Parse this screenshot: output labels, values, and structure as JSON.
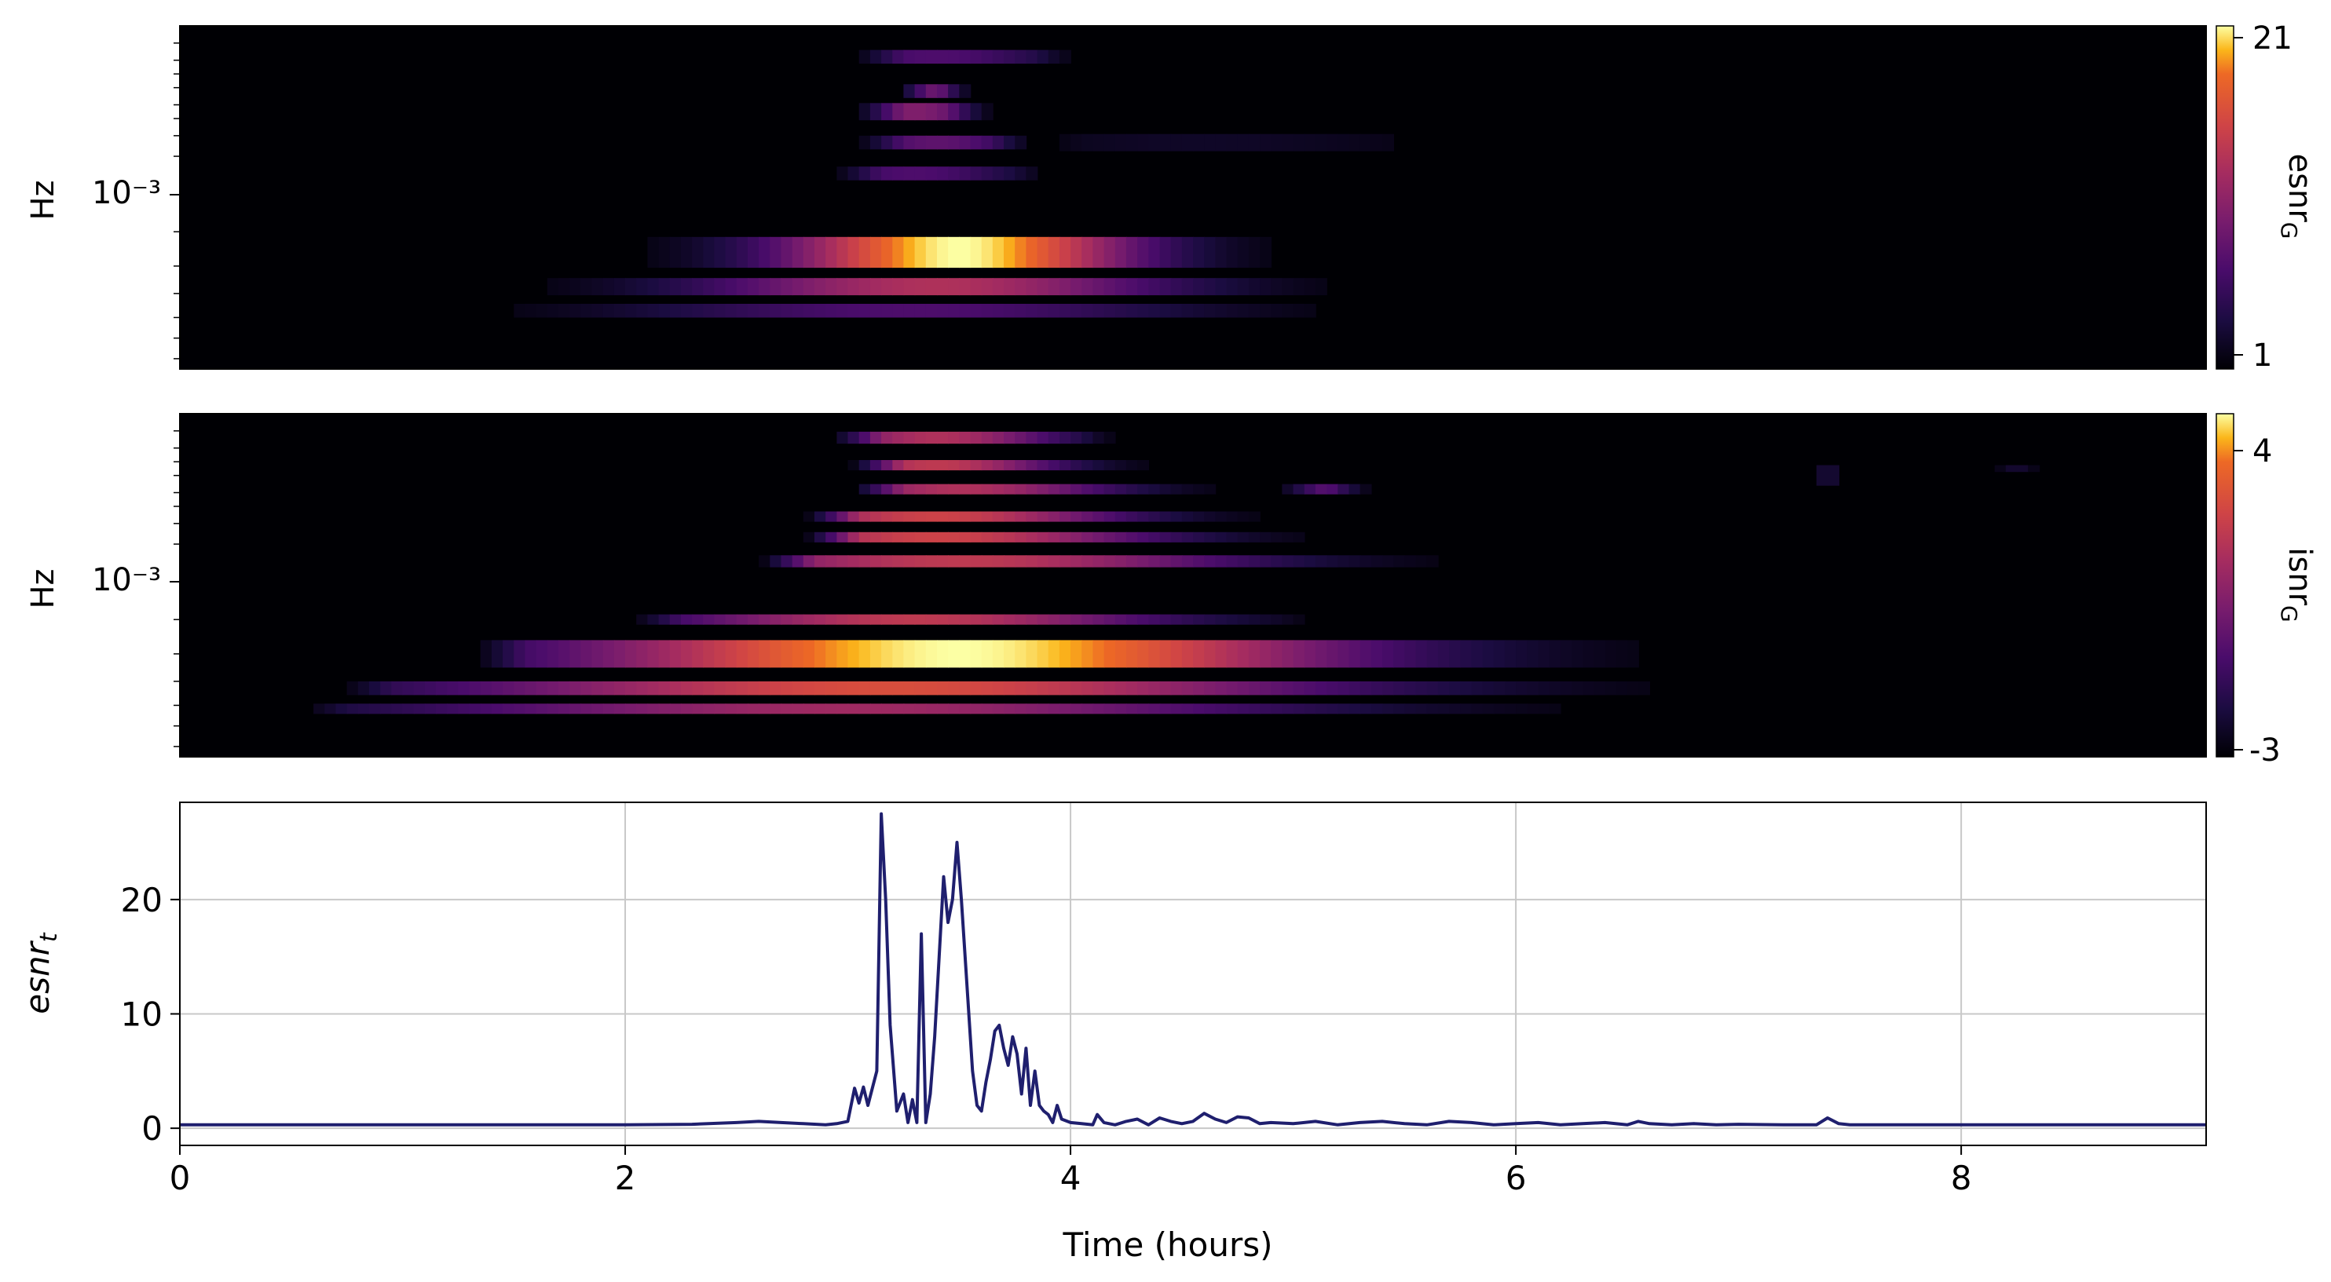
{
  "chart_data": [
    {
      "type": "heatmap",
      "ylabel": "Hz",
      "ytick_labels": [
        "10⁻³"
      ],
      "x_range": [
        0,
        9.1
      ],
      "colormap": "inferno",
      "colorbar": {
        "label": "esnr",
        "label_subscript": "G",
        "ticks": [
          "21",
          "1"
        ],
        "range": [
          1,
          21
        ]
      },
      "blobs": [
        {
          "t0": 1.2,
          "t1": 6.9,
          "row": 0.66,
          "thick": 0.09,
          "peak_t": 3.5,
          "peak": 1.0,
          "spread": 0.55
        },
        {
          "t0": 0.6,
          "t1": 6.4,
          "row": 0.76,
          "thick": 0.05,
          "peak_t": 3.4,
          "peak": 0.6,
          "spread": 0.75
        },
        {
          "t0": 0.3,
          "t1": 6.0,
          "row": 0.83,
          "thick": 0.04,
          "peak_t": 3.3,
          "peak": 0.3,
          "spread": 0.9
        },
        {
          "t0": 2.9,
          "t1": 4.0,
          "row": 0.43,
          "thick": 0.04,
          "peak_t": 3.3,
          "peak": 0.3,
          "spread": 0.35
        },
        {
          "t0": 3.0,
          "t1": 3.9,
          "row": 0.34,
          "thick": 0.04,
          "peak_t": 3.4,
          "peak": 0.35,
          "spread": 0.3
        },
        {
          "t0": 3.0,
          "t1": 3.7,
          "row": 0.25,
          "thick": 0.05,
          "peak_t": 3.3,
          "peak": 0.45,
          "spread": 0.25
        },
        {
          "t0": 3.2,
          "t1": 3.6,
          "row": 0.19,
          "thick": 0.04,
          "peak_t": 3.35,
          "peak": 0.55,
          "spread": 0.15
        },
        {
          "t0": 3.0,
          "t1": 4.1,
          "row": 0.09,
          "thick": 0.04,
          "peak_t": 3.4,
          "peak": 0.3,
          "spread": 0.4
        },
        {
          "t0": 3.8,
          "t1": 5.7,
          "row": 0.34,
          "thick": 0.05,
          "peak_t": 4.6,
          "peak": 0.08,
          "spread": 0.8
        }
      ]
    },
    {
      "type": "heatmap",
      "ylabel": "Hz",
      "ytick_labels": [
        "10⁻³"
      ],
      "x_range": [
        0,
        9.1
      ],
      "colormap": "inferno",
      "colorbar": {
        "label": "isnr",
        "label_subscript": "G",
        "ticks": [
          "4",
          "-3"
        ],
        "range": [
          -3,
          4
        ]
      },
      "blobs": [
        {
          "t0": 1.3,
          "t1": 7.3,
          "row": 0.7,
          "thick": 0.08,
          "peak_t": 3.5,
          "peak": 1.0,
          "spread": 1.2
        },
        {
          "t0": 0.7,
          "t1": 7.0,
          "row": 0.8,
          "thick": 0.04,
          "peak_t": 3.2,
          "peak": 0.75,
          "spread": 1.4
        },
        {
          "t0": 0.5,
          "t1": 6.5,
          "row": 0.86,
          "thick": 0.03,
          "peak_t": 3.0,
          "peak": 0.55,
          "spread": 1.4
        },
        {
          "t0": 2.0,
          "t1": 5.2,
          "row": 0.6,
          "thick": 0.03,
          "peak_t": 3.3,
          "peak": 0.65,
          "spread": 0.8
        },
        {
          "t0": 2.6,
          "t1": 6.1,
          "row": 0.43,
          "thick": 0.035,
          "peak_t": 3.5,
          "peak": 0.65,
          "spread": 0.9
        },
        {
          "t0": 2.8,
          "t1": 5.3,
          "row": 0.36,
          "thick": 0.03,
          "peak_t": 3.4,
          "peak": 0.7,
          "spread": 0.7
        },
        {
          "t0": 2.8,
          "t1": 5.6,
          "row": 0.3,
          "thick": 0.03,
          "peak_t": 3.4,
          "peak": 0.7,
          "spread": 0.6
        },
        {
          "t0": 3.0,
          "t1": 5.7,
          "row": 0.22,
          "thick": 0.03,
          "peak_t": 3.5,
          "peak": 0.6,
          "spread": 0.5
        },
        {
          "t0": 3.0,
          "t1": 4.9,
          "row": 0.15,
          "thick": 0.03,
          "peak_t": 3.4,
          "peak": 0.65,
          "spread": 0.4
        },
        {
          "t0": 2.9,
          "t1": 4.3,
          "row": 0.07,
          "thick": 0.035,
          "peak_t": 3.4,
          "peak": 0.6,
          "spread": 0.4
        },
        {
          "t0": 4.9,
          "t1": 5.4,
          "row": 0.22,
          "thick": 0.03,
          "peak_t": 5.1,
          "peak": 0.35,
          "spread": 0.2
        },
        {
          "t0": 7.3,
          "t1": 7.5,
          "row": 0.18,
          "thick": 0.06,
          "peak_t": 7.4,
          "peak": 0.35,
          "spread": 0.1
        },
        {
          "t0": 8.1,
          "t1": 8.4,
          "row": 0.16,
          "thick": 0.02,
          "peak_t": 8.25,
          "peak": 0.2,
          "spread": 0.1
        },
        {
          "t0": 7.7,
          "t1": 7.9,
          "row": 0.16,
          "thick": 0.02,
          "peak_t": 7.8,
          "peak": 0.1,
          "spread": 0.08
        }
      ]
    },
    {
      "type": "line",
      "ylabel": "esnr",
      "ylabel_subscript": "t",
      "xlabel": "Time (hours)",
      "xlim": [
        0,
        9.1
      ],
      "ylim": [
        -1.5,
        28.5
      ],
      "xticks": [
        0,
        2,
        4,
        6,
        8
      ],
      "yticks": [
        0,
        10,
        20
      ],
      "grid": true,
      "line_color": "#1f1f6e",
      "series": [
        {
          "x": [
            0,
            0.5,
            1.0,
            1.5,
            2.0,
            2.3,
            2.5,
            2.6,
            2.7,
            2.8,
            2.9,
            2.95,
            3.0,
            3.03,
            3.05,
            3.07,
            3.09,
            3.11,
            3.13,
            3.15,
            3.17,
            3.19,
            3.22,
            3.25,
            3.27,
            3.29,
            3.31,
            3.33,
            3.35,
            3.37,
            3.39,
            3.41,
            3.43,
            3.45,
            3.47,
            3.49,
            3.51,
            3.53,
            3.56,
            3.58,
            3.6,
            3.62,
            3.64,
            3.66,
            3.68,
            3.7,
            3.72,
            3.74,
            3.76,
            3.78,
            3.8,
            3.82,
            3.84,
            3.86,
            3.88,
            3.9,
            3.92,
            3.94,
            3.96,
            4.0,
            4.05,
            4.1,
            4.12,
            4.15,
            4.2,
            4.25,
            4.3,
            4.35,
            4.4,
            4.45,
            4.5,
            4.55,
            4.6,
            4.65,
            4.7,
            4.75,
            4.8,
            4.85,
            4.9,
            5.0,
            5.1,
            5.2,
            5.3,
            5.4,
            5.5,
            5.6,
            5.7,
            5.8,
            5.9,
            6.0,
            6.1,
            6.2,
            6.3,
            6.4,
            6.5,
            6.55,
            6.6,
            6.7,
            6.8,
            6.9,
            7.0,
            7.2,
            7.35,
            7.4,
            7.45,
            7.5,
            7.7,
            8.0,
            8.3,
            8.6,
            9.0,
            9.1
          ],
          "y": [
            0.3,
            0.3,
            0.3,
            0.3,
            0.3,
            0.35,
            0.5,
            0.6,
            0.5,
            0.4,
            0.3,
            0.4,
            0.6,
            3.5,
            2.2,
            3.6,
            2.0,
            3.5,
            5.0,
            27.5,
            20.0,
            9.0,
            1.5,
            3.0,
            0.5,
            2.5,
            0.5,
            17.0,
            0.5,
            3.0,
            8.0,
            15.0,
            22.0,
            18.0,
            20.0,
            25.0,
            20.0,
            14.0,
            5.0,
            2.0,
            1.5,
            4.0,
            6.0,
            8.5,
            9.0,
            7.0,
            5.5,
            8.0,
            6.5,
            3.0,
            7.0,
            2.0,
            5.0,
            2.0,
            1.5,
            1.2,
            0.5,
            2.0,
            0.8,
            0.5,
            0.4,
            0.3,
            1.2,
            0.5,
            0.3,
            0.6,
            0.8,
            0.3,
            0.9,
            0.6,
            0.4,
            0.6,
            1.3,
            0.8,
            0.5,
            1.0,
            0.9,
            0.4,
            0.5,
            0.4,
            0.6,
            0.3,
            0.5,
            0.6,
            0.4,
            0.3,
            0.6,
            0.5,
            0.3,
            0.4,
            0.5,
            0.3,
            0.4,
            0.5,
            0.3,
            0.6,
            0.4,
            0.3,
            0.4,
            0.3,
            0.35,
            0.3,
            0.3,
            0.9,
            0.4,
            0.3,
            0.3,
            0.3,
            0.3,
            0.3,
            0.3,
            0.3
          ]
        }
      ]
    }
  ]
}
